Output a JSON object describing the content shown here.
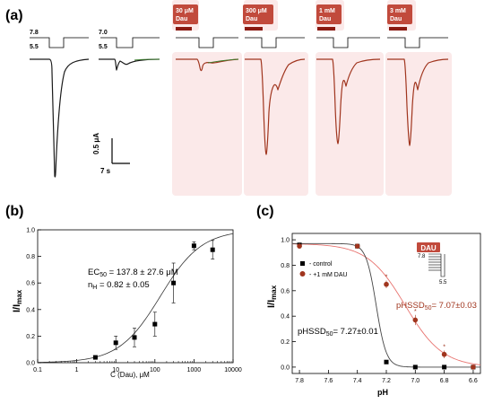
{
  "panel_labels": {
    "a": "(a)",
    "b": "(b)",
    "c": "(c)"
  },
  "panel_a": {
    "ph_levels": {
      "p1": "7.8",
      "p2": "5.5",
      "p3": "7.0",
      "p4": "5.5"
    },
    "applications": [
      "30 μM\nDau",
      "300 μM\nDau",
      "1 mM\nDau",
      "3 mM\nDau"
    ],
    "scale_current": "0.5 μA",
    "scale_time": "7 s",
    "colors": {
      "control": "#1a1a1a",
      "dau": "#a0351e",
      "secondary": "#3c7d2e",
      "bar": "#8b1a12",
      "label_bg": "#f7e3e0"
    }
  },
  "panel_b": {
    "annotation_ec50": "EC50 = 137.8 ± 27.6 μM",
    "annotation_nh": "nH = 0.82 ± 0.05",
    "ylabel": "I/Imax",
    "xlabel": "C (Dau), μM"
  },
  "panel_c": {
    "ylabel": "I/Imax",
    "xlabel": "pH",
    "legend": [
      "- control",
      "- +1 mM DAU"
    ],
    "annotation_control": "pHSSD50= 7.27±0.01",
    "annotation_dau": "pHSSD50= 7.07±0.03",
    "inset": {
      "label": "DAU",
      "high": "7.8",
      "low": "5.5"
    },
    "colors": {
      "control": "#000000",
      "dau": "#a0351e",
      "dau_curve": "#e8736f"
    }
  },
  "chart_data": [
    {
      "type": "scatter",
      "panel": "b",
      "xlabel": "C (Dau), μM",
      "ylabel": "I/Imax",
      "xscale": "log",
      "xlim": [
        0.1,
        10000
      ],
      "ylim": [
        0,
        1.0
      ],
      "xticks": [
        "0.1",
        "1",
        "10",
        "100",
        "1000",
        "10000"
      ],
      "yticks": [
        "0.0",
        "0.2",
        "0.4",
        "0.6",
        "0.8",
        "1.0"
      ],
      "series": [
        {
          "x": [
            3,
            10,
            30,
            100,
            300,
            1000,
            3000
          ],
          "values": [
            0.04,
            0.15,
            0.19,
            0.29,
            0.6,
            0.88,
            0.85
          ],
          "error": [
            0.0,
            0.05,
            0.07,
            0.09,
            0.15,
            0.03,
            0.07
          ]
        }
      ],
      "fit": {
        "ec50": 137.8,
        "nh": 0.82
      },
      "grid": false
    },
    {
      "type": "scatter",
      "panel": "c",
      "xlabel": "pH",
      "ylabel": "I/Imax",
      "xlim": [
        7.85,
        6.55
      ],
      "ylim": [
        -0.05,
        1.05
      ],
      "xticks": [
        "7.8",
        "7.6",
        "7.4",
        "7.2",
        "7.0",
        "6.8",
        "6.6"
      ],
      "yticks": [
        "0.0",
        "0.2",
        "0.4",
        "0.6",
        "0.8",
        "1.0"
      ],
      "series": [
        {
          "name": "- control",
          "x": [
            7.8,
            7.4,
            7.2,
            7.0,
            6.8,
            6.6
          ],
          "values": [
            0.96,
            0.95,
            0.04,
            0.0,
            0.0,
            0.0
          ],
          "error": [
            0.01,
            0.01,
            0.01,
            0.01,
            0.01,
            0.01
          ],
          "fit": {
            "ph50": 7.27,
            "slope_scale": 0.035
          }
        },
        {
          "name": "- +1 mM DAU",
          "x": [
            7.8,
            7.4,
            7.2,
            7.0,
            6.8,
            6.6
          ],
          "values": [
            0.95,
            0.95,
            0.65,
            0.37,
            0.1,
            0.0
          ],
          "error": [
            0.01,
            0.01,
            0.03,
            0.04,
            0.03,
            0.01
          ],
          "fit": {
            "ph50": 7.07,
            "slope_scale": 0.13
          }
        }
      ],
      "legend_position": "top-left",
      "grid": false
    }
  ]
}
